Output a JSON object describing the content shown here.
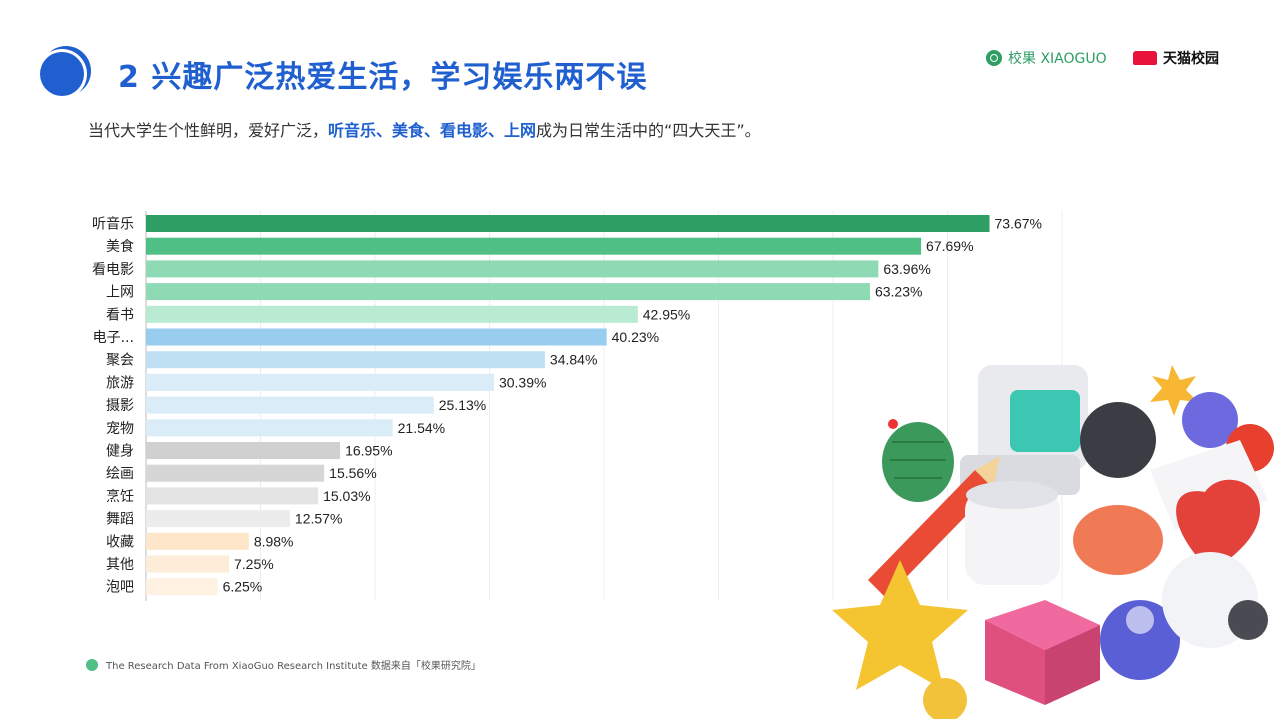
{
  "header": {
    "title": "2 兴趣广泛热爱生活，学习娱乐两不误",
    "subtitle_pre": "当代大学生个性鲜明，爱好广泛，",
    "subtitle_highlight": "听音乐、美食、看电影、上网",
    "subtitle_post": "成为日常生活中的“四大天王”。"
  },
  "brands": {
    "xiaoguo": "校果 XIAOGUO",
    "tmall": "天猫校园"
  },
  "footer": {
    "text": "The Research Data  From XiaoGuo Research Institute 数据来自「校果研究院」"
  },
  "chart_data": {
    "type": "bar",
    "orientation": "horizontal",
    "categories": [
      "听音乐",
      "美食",
      "看电影",
      "上网",
      "看书",
      "电子...",
      "聚会",
      "旅游",
      "摄影",
      "宠物",
      "健身",
      "绘画",
      "烹饪",
      "舞蹈",
      "收藏",
      "其他",
      "泡吧"
    ],
    "values": [
      73.67,
      67.69,
      63.96,
      63.23,
      42.95,
      40.23,
      34.84,
      30.39,
      25.13,
      21.54,
      16.95,
      15.56,
      15.03,
      12.57,
      8.98,
      7.25,
      6.25
    ],
    "value_labels": [
      "73.67%",
      "67.69%",
      "63.96%",
      "63.23%",
      "42.95%",
      "40.23%",
      "34.84%",
      "30.39%",
      "25.13%",
      "21.54%",
      "16.95%",
      "15.56%",
      "15.03%",
      "12.57%",
      "8.98%",
      "7.25%",
      "6.25%"
    ],
    "bar_colors": [
      "#2e9e63",
      "#4fbf83",
      "#8edab5",
      "#8edab5",
      "#b9ead2",
      "#98cdef",
      "#bfe0f3",
      "#d9ecf8",
      "#d9ecf8",
      "#d9ecf8",
      "#d0d0d0",
      "#d6d6d6",
      "#e4e4e4",
      "#ececec",
      "#fde6c9",
      "#fdecd7",
      "#fef1e1"
    ],
    "xlim": [
      0,
      80
    ],
    "grid": true,
    "xlabel": "",
    "ylabel": ""
  }
}
